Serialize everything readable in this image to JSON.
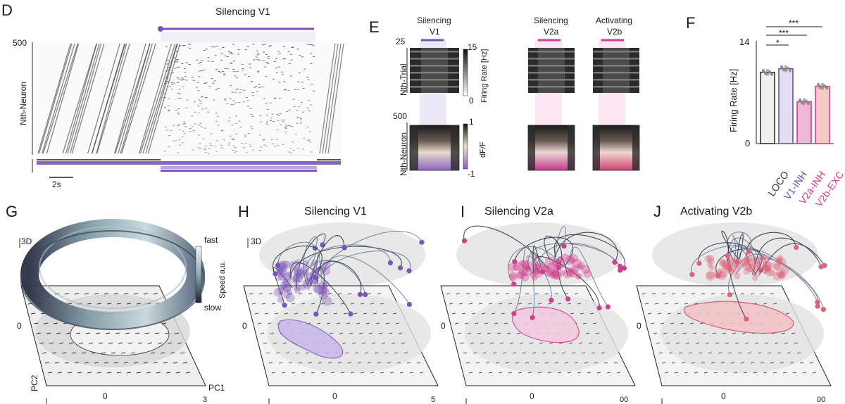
{
  "panels": {
    "D": {
      "label": "D",
      "title": "Silencing V1",
      "y_top": "500",
      "ylabel": "Nth-Neuron",
      "scalebar": "2s"
    },
    "E": {
      "label": "E",
      "titles": {
        "v1_line1": "Silencing",
        "v1_line2": "V1",
        "v2a_line1": "Silencing",
        "v2a_line2": "V2a",
        "v2b_line1": "Activating",
        "v2b_line2": "V2b"
      },
      "trial_top": "25",
      "trial_label": "Nth-Trial",
      "neuron_top": "500",
      "neuron_label": "Nth-Neuron",
      "cbar1_max": "15",
      "cbar1_min": "0",
      "cbar1_label": "Firing Rate [Hz]",
      "cbar2_max": "1",
      "cbar2_min": "-1",
      "cbar2_label": "dF/F"
    },
    "F": {
      "label": "F",
      "ylabel": "Firing Rate [Hz]",
      "ytick_max": "14",
      "ytick_min": "0",
      "sig": [
        "***",
        "***",
        "*"
      ]
    },
    "G": {
      "label": "G",
      "tag3d": "3D",
      "speed_fast": "fast",
      "speed_slow": "slow",
      "speed_label": "Speed a.u.",
      "pc1": "PC1",
      "pc2": "PC2",
      "zero": "0",
      "zero_x": "0",
      "edge_tick": "3"
    },
    "H": {
      "label": "H",
      "title": "Silencing  V1",
      "tag3d": "3D",
      "zero": "0",
      "zero_x": "0",
      "edge_tick": "5"
    },
    "I": {
      "label": "I",
      "title": "Silencing  V2a",
      "zero": "0",
      "zero_x": "0",
      "edge_tick": "00"
    },
    "J": {
      "label": "J",
      "title": "Activating V2b",
      "zero": "0",
      "zero_x": "0",
      "edge_tick": "00"
    }
  },
  "colors": {
    "purple": "#7a55b8",
    "magenta": "#d43c8c",
    "pink": "#e0627a",
    "grey_bar": "#f0f0f0",
    "v1_bar": "#e4dcf2",
    "v2a_bar": "#f1b7d8",
    "v2b_bar": "#f4c9c5"
  },
  "chart_data": {
    "type": "bar",
    "categories": [
      "LOCO",
      "V1-INH",
      "V2a-INH",
      "V2b-EXC"
    ],
    "values": [
      9.7,
      10.2,
      5.7,
      7.8
    ],
    "ylabel": "Firing Rate [Hz]",
    "ylim": [
      0,
      14
    ],
    "category_colors": [
      "#333333",
      "#6b4fb0",
      "#c93a8e",
      "#d13f8a"
    ],
    "significance": [
      {
        "pair": [
          "LOCO",
          "V1-INH"
        ],
        "label": "*"
      },
      {
        "pair": [
          "LOCO",
          "V2a-INH"
        ],
        "label": "***"
      },
      {
        "pair": [
          "LOCO",
          "V2b-EXC"
        ],
        "label": "***"
      }
    ]
  }
}
